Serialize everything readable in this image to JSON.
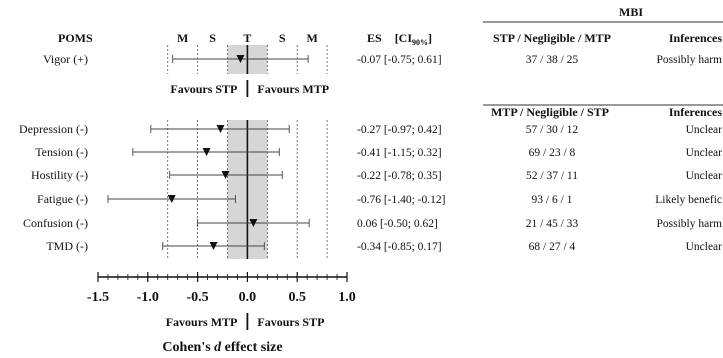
{
  "chart_data": {
    "type": "forest",
    "xlabel_prefix": "Cohen's ",
    "xlabel_italic": "d",
    "xlabel_suffix": " effect size",
    "xlim": [
      -1.5,
      1.0
    ],
    "xticks": [
      -1.5,
      -1.0,
      -0.5,
      0.0,
      0.5,
      1.0
    ],
    "xtick_labels": [
      "-1.5",
      "-1.0",
      "-0.5",
      "0.0",
      "0.5",
      "1.0"
    ],
    "thresholds": [
      -0.8,
      -0.5,
      -0.2,
      0.2,
      0.5,
      0.8
    ],
    "threshold_labels": [
      "M",
      "S",
      "T",
      "S",
      "M"
    ],
    "trivial_band": [
      -0.2,
      0.2
    ],
    "header": {
      "poms": "POMS",
      "es_main": "ES",
      "ci_open": "[CI",
      "ci_sub": "90%",
      "ci_close": "]",
      "mbi": "MBI",
      "compare_top": "STP / Negligible / MTP",
      "compare_bottom": "MTP / Negligible / STP",
      "inferences": "Inferences"
    },
    "favours_top": [
      "Favours STP",
      "Favours MTP"
    ],
    "favours_bottom": [
      "Favours MTP",
      "Favours STP"
    ],
    "groups": [
      {
        "rows": [
          {
            "label": "Vigor (+)",
            "es": -0.07,
            "ci": [
              -0.75,
              0.61
            ],
            "es_text": "-0.07 [-0.75; 0.61]",
            "mbi": "37 / 38 / 25",
            "inference": "Possibly harm"
          }
        ]
      },
      {
        "rows": [
          {
            "label": "Depression (-)",
            "es": -0.27,
            "ci": [
              -0.97,
              0.42
            ],
            "es_text": "-0.27 [-0.97; 0.42]",
            "mbi": "57 / 30 / 12",
            "inference": "Unclear"
          },
          {
            "label": "Tension (-)",
            "es": -0.41,
            "ci": [
              -1.15,
              0.32
            ],
            "es_text": "-0.41 [-1.15; 0.32]",
            "mbi": "69 / 23 / 8",
            "inference": "Unclear"
          },
          {
            "label": "Hostility (-)",
            "es": -0.22,
            "ci": [
              -0.78,
              0.35
            ],
            "es_text": "-0.22 [-0.78; 0.35]",
            "mbi": "52 / 37 / 11",
            "inference": "Unclear"
          },
          {
            "label": "Fatigue (-)",
            "es": -0.76,
            "ci": [
              -1.4,
              -0.12
            ],
            "es_text": "-0.76 [-1.40; -0.12]",
            "mbi": "93 / 6 / 1",
            "inference": "Likely benefic"
          },
          {
            "label": "Confusion (-)",
            "es": 0.06,
            "ci": [
              -0.5,
              0.62
            ],
            "es_text": "0.06 [-0.50; 0.62]",
            "mbi": "21 / 45 / 33",
            "inference": "Possibly harm"
          },
          {
            "label": "TMD (-)",
            "es": -0.34,
            "ci": [
              -0.85,
              0.17
            ],
            "es_text": "-0.34 [-0.85; 0.17]",
            "mbi": "68 / 27 / 4",
            "inference": "Unclear"
          }
        ]
      }
    ]
  }
}
